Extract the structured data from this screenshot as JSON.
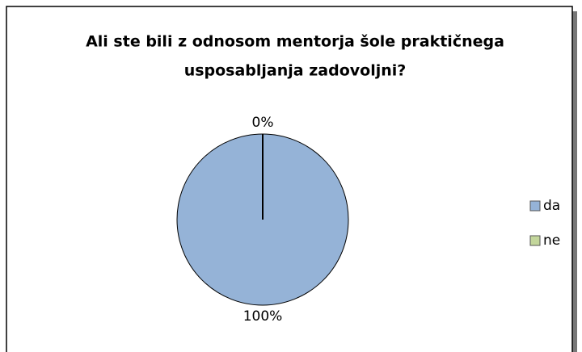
{
  "chart_data": {
    "type": "pie",
    "title": [
      "Ali ste bili z odnosom mentorja šole praktičnega",
      "usposabljanja zadovoljni?"
    ],
    "categories": [
      "da",
      "ne"
    ],
    "values": [
      100,
      0
    ],
    "value_labels": [
      "100%",
      "0%"
    ],
    "colors": [
      "#95b3d7",
      "#c3d69b"
    ],
    "legend": "right"
  }
}
